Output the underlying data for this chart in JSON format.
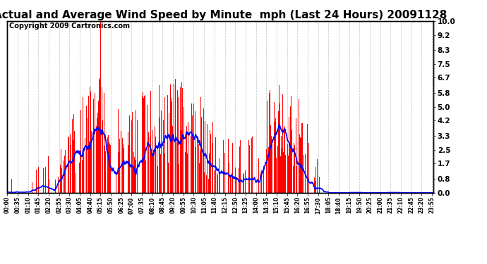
{
  "title": "Actual and Average Wind Speed by Minute  mph (Last 24 Hours) 20091128",
  "copyright": "Copyright 2009 Cartronics.com",
  "ylabel_right": [
    "0.0",
    "0.8",
    "1.7",
    "2.5",
    "3.3",
    "4.2",
    "5.0",
    "5.8",
    "6.7",
    "7.5",
    "8.3",
    "9.2",
    "10.0"
  ],
  "yticks_right": [
    0.0,
    0.8,
    1.7,
    2.5,
    3.3,
    4.2,
    5.0,
    5.8,
    6.7,
    7.5,
    8.3,
    9.2,
    10.0
  ],
  "ymax": 10.0,
  "ymin": 0.0,
  "bar_color": "#ff0000",
  "line_color": "#0000ff",
  "background_color": "#ffffff",
  "grid_color": "#b0b0b0",
  "title_fontsize": 11,
  "copyright_fontsize": 7,
  "num_minutes": 1440,
  "avg_window": 20
}
